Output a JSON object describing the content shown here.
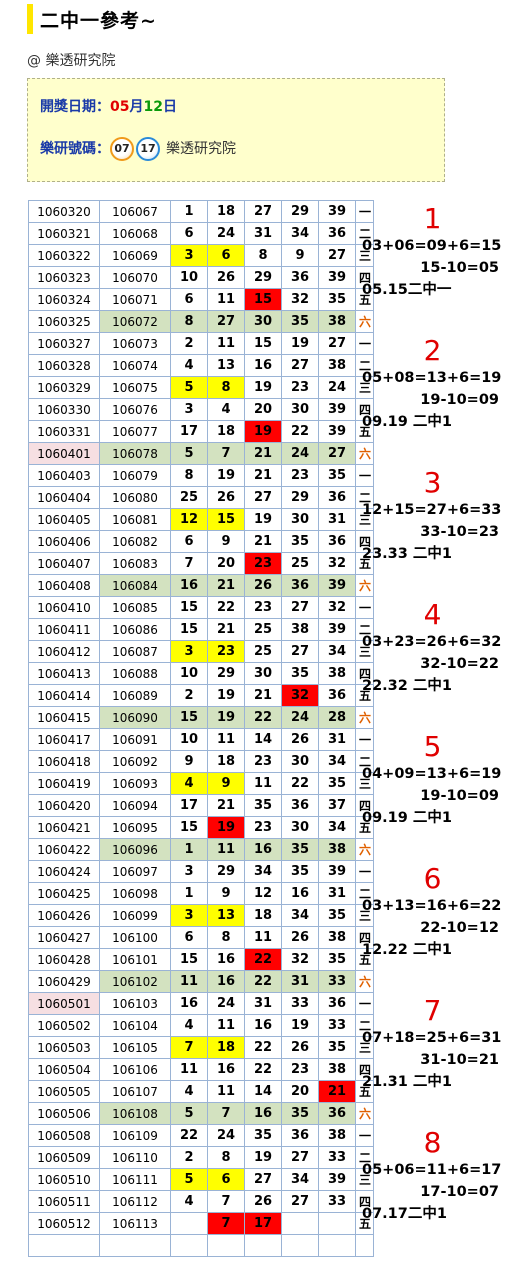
{
  "page": {
    "title": "二中一參考~",
    "byline": "@ 樂透研究院"
  },
  "info": {
    "date_label": "開獎日期：",
    "month": "05",
    "month_unit": "月",
    "day": "12",
    "day_unit": "日",
    "numbers_label": "樂研號碼：",
    "balls": [
      "07",
      "17"
    ],
    "source": "樂透研究院"
  },
  "rows": [
    {
      "date": "1060320",
      "issue": "106067",
      "nums": [
        "1",
        "18",
        "27",
        "29",
        "39"
      ],
      "wd": "一"
    },
    {
      "date": "1060321",
      "issue": "106068",
      "nums": [
        "6",
        "24",
        "31",
        "34",
        "36"
      ],
      "wd": "二"
    },
    {
      "date": "1060322",
      "issue": "106069",
      "nums": [
        "3",
        "6",
        "8",
        "9",
        "27"
      ],
      "wd": "三",
      "y": [
        0,
        1
      ]
    },
    {
      "date": "1060323",
      "issue": "106070",
      "nums": [
        "10",
        "26",
        "29",
        "36",
        "39"
      ],
      "wd": "四"
    },
    {
      "date": "1060324",
      "issue": "106071",
      "nums": [
        "6",
        "11",
        "15",
        "32",
        "35"
      ],
      "wd": "五",
      "r": [
        2
      ]
    },
    {
      "date": "1060325",
      "issue": "106072",
      "nums": [
        "8",
        "27",
        "30",
        "35",
        "38"
      ],
      "wd": "六",
      "sat": true
    },
    {
      "date": "1060327",
      "issue": "106073",
      "nums": [
        "2",
        "11",
        "15",
        "19",
        "27"
      ],
      "wd": "一"
    },
    {
      "date": "1060328",
      "issue": "106074",
      "nums": [
        "4",
        "13",
        "16",
        "27",
        "38"
      ],
      "wd": "二"
    },
    {
      "date": "1060329",
      "issue": "106075",
      "nums": [
        "5",
        "8",
        "19",
        "23",
        "24"
      ],
      "wd": "三",
      "y": [
        0,
        1
      ]
    },
    {
      "date": "1060330",
      "issue": "106076",
      "nums": [
        "3",
        "4",
        "20",
        "30",
        "39"
      ],
      "wd": "四"
    },
    {
      "date": "1060331",
      "issue": "106077",
      "nums": [
        "17",
        "18",
        "19",
        "22",
        "39"
      ],
      "wd": "五",
      "r": [
        2
      ]
    },
    {
      "date": "1060401",
      "issue": "106078",
      "nums": [
        "5",
        "7",
        "21",
        "24",
        "27"
      ],
      "wd": "六",
      "sat": true,
      "pink": true
    },
    {
      "date": "1060403",
      "issue": "106079",
      "nums": [
        "8",
        "19",
        "21",
        "23",
        "35"
      ],
      "wd": "一"
    },
    {
      "date": "1060404",
      "issue": "106080",
      "nums": [
        "25",
        "26",
        "27",
        "29",
        "36"
      ],
      "wd": "二"
    },
    {
      "date": "1060405",
      "issue": "106081",
      "nums": [
        "12",
        "15",
        "19",
        "30",
        "31"
      ],
      "wd": "三",
      "y": [
        0,
        1
      ]
    },
    {
      "date": "1060406",
      "issue": "106082",
      "nums": [
        "6",
        "9",
        "21",
        "35",
        "36"
      ],
      "wd": "四"
    },
    {
      "date": "1060407",
      "issue": "106083",
      "nums": [
        "7",
        "20",
        "23",
        "25",
        "32"
      ],
      "wd": "五",
      "r": [
        2
      ]
    },
    {
      "date": "1060408",
      "issue": "106084",
      "nums": [
        "16",
        "21",
        "26",
        "36",
        "39"
      ],
      "wd": "六",
      "sat": true
    },
    {
      "date": "1060410",
      "issue": "106085",
      "nums": [
        "15",
        "22",
        "23",
        "27",
        "32"
      ],
      "wd": "一"
    },
    {
      "date": "1060411",
      "issue": "106086",
      "nums": [
        "15",
        "21",
        "25",
        "38",
        "39"
      ],
      "wd": "二"
    },
    {
      "date": "1060412",
      "issue": "106087",
      "nums": [
        "3",
        "23",
        "25",
        "27",
        "34"
      ],
      "wd": "三",
      "y": [
        0,
        1
      ]
    },
    {
      "date": "1060413",
      "issue": "106088",
      "nums": [
        "10",
        "29",
        "30",
        "35",
        "38"
      ],
      "wd": "四"
    },
    {
      "date": "1060414",
      "issue": "106089",
      "nums": [
        "2",
        "19",
        "21",
        "32",
        "36"
      ],
      "wd": "五",
      "r": [
        3
      ]
    },
    {
      "date": "1060415",
      "issue": "106090",
      "nums": [
        "15",
        "19",
        "22",
        "24",
        "28"
      ],
      "wd": "六",
      "sat": true
    },
    {
      "date": "1060417",
      "issue": "106091",
      "nums": [
        "10",
        "11",
        "14",
        "26",
        "31"
      ],
      "wd": "一"
    },
    {
      "date": "1060418",
      "issue": "106092",
      "nums": [
        "9",
        "18",
        "23",
        "30",
        "34"
      ],
      "wd": "二"
    },
    {
      "date": "1060419",
      "issue": "106093",
      "nums": [
        "4",
        "9",
        "11",
        "22",
        "35"
      ],
      "wd": "三",
      "y": [
        0,
        1
      ]
    },
    {
      "date": "1060420",
      "issue": "106094",
      "nums": [
        "17",
        "21",
        "35",
        "36",
        "37"
      ],
      "wd": "四"
    },
    {
      "date": "1060421",
      "issue": "106095",
      "nums": [
        "15",
        "19",
        "23",
        "30",
        "34"
      ],
      "wd": "五",
      "r": [
        1
      ]
    },
    {
      "date": "1060422",
      "issue": "106096",
      "nums": [
        "1",
        "11",
        "16",
        "35",
        "38"
      ],
      "wd": "六",
      "sat": true
    },
    {
      "date": "1060424",
      "issue": "106097",
      "nums": [
        "3",
        "29",
        "34",
        "35",
        "39"
      ],
      "wd": "一"
    },
    {
      "date": "1060425",
      "issue": "106098",
      "nums": [
        "1",
        "9",
        "12",
        "16",
        "31"
      ],
      "wd": "二"
    },
    {
      "date": "1060426",
      "issue": "106099",
      "nums": [
        "3",
        "13",
        "18",
        "34",
        "35"
      ],
      "wd": "三",
      "y": [
        0,
        1
      ]
    },
    {
      "date": "1060427",
      "issue": "106100",
      "nums": [
        "6",
        "8",
        "11",
        "26",
        "38"
      ],
      "wd": "四"
    },
    {
      "date": "1060428",
      "issue": "106101",
      "nums": [
        "15",
        "16",
        "22",
        "32",
        "35"
      ],
      "wd": "五",
      "r": [
        2
      ]
    },
    {
      "date": "1060429",
      "issue": "106102",
      "nums": [
        "11",
        "16",
        "22",
        "31",
        "33"
      ],
      "wd": "六",
      "sat": true
    },
    {
      "date": "1060501",
      "issue": "106103",
      "nums": [
        "16",
        "24",
        "31",
        "33",
        "36"
      ],
      "wd": "一",
      "pink": true
    },
    {
      "date": "1060502",
      "issue": "106104",
      "nums": [
        "4",
        "11",
        "16",
        "19",
        "33"
      ],
      "wd": "二"
    },
    {
      "date": "1060503",
      "issue": "106105",
      "nums": [
        "7",
        "18",
        "22",
        "26",
        "35"
      ],
      "wd": "三",
      "y": [
        0,
        1
      ]
    },
    {
      "date": "1060504",
      "issue": "106106",
      "nums": [
        "11",
        "16",
        "22",
        "23",
        "38"
      ],
      "wd": "四"
    },
    {
      "date": "1060505",
      "issue": "106107",
      "nums": [
        "4",
        "11",
        "14",
        "20",
        "21"
      ],
      "wd": "五",
      "r": [
        4
      ]
    },
    {
      "date": "1060506",
      "issue": "106108",
      "nums": [
        "5",
        "7",
        "16",
        "35",
        "36"
      ],
      "wd": "六",
      "sat": true
    },
    {
      "date": "1060508",
      "issue": "106109",
      "nums": [
        "22",
        "24",
        "35",
        "36",
        "38"
      ],
      "wd": "一"
    },
    {
      "date": "1060509",
      "issue": "106110",
      "nums": [
        "2",
        "8",
        "19",
        "27",
        "33"
      ],
      "wd": "二"
    },
    {
      "date": "1060510",
      "issue": "106111",
      "nums": [
        "5",
        "6",
        "27",
        "34",
        "39"
      ],
      "wd": "三",
      "y": [
        0,
        1
      ]
    },
    {
      "date": "1060511",
      "issue": "106112",
      "nums": [
        "4",
        "7",
        "26",
        "27",
        "33"
      ],
      "wd": "四"
    },
    {
      "date": "1060512",
      "issue": "106113",
      "nums": [
        "",
        "7",
        "17",
        "",
        ""
      ],
      "wd": "五",
      "r": [
        1,
        2
      ]
    },
    {
      "date": "",
      "issue": "",
      "nums": [
        "",
        "",
        "",
        "",
        ""
      ],
      "wd": ""
    }
  ],
  "notes": [
    {
      "num": "1",
      "eq": "03+06=09+6=15",
      "sub": "15-10=05",
      "res": "05.15二中一"
    },
    {
      "num": "2",
      "eq": "05+08=13+6=19",
      "sub": "19-10=09",
      "res": "09.19 二中1"
    },
    {
      "num": "3",
      "eq": "12+15=27+6=33",
      "sub": "33-10=23",
      "res": "23.33 二中1"
    },
    {
      "num": "4",
      "eq": "03+23=26+6=32",
      "sub": "32-10=22",
      "res": "22.32 二中1"
    },
    {
      "num": "5",
      "eq": "04+09=13+6=19",
      "sub": "19-10=09",
      "res": "09.19 二中1"
    },
    {
      "num": "6",
      "eq": "03+13=16+6=22",
      "sub": "22-10=12",
      "res": "12.22 二中1"
    },
    {
      "num": "7",
      "eq": "07+18=25+6=31",
      "sub": "31-10=21",
      "res": "21.31 二中1"
    },
    {
      "num": "8",
      "eq": "05+06=11+6=17",
      "sub": "17-10=07",
      "res": "07.17二中1"
    }
  ]
}
